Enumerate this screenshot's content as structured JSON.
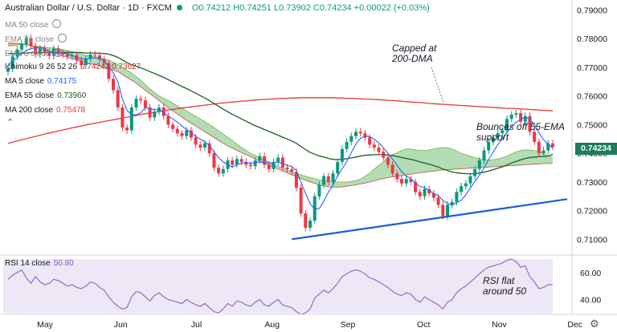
{
  "header": {
    "symbol": "Australian Dollar / U.S. Dollar · 1D · FXCM",
    "ohlc": "O0.74212 H0.74251 L0.73902 C0.74234 +0.00022 (+0.03%)"
  },
  "legend": [
    {
      "label": "MA 50 close",
      "value": ""
    },
    {
      "label": "EMA 21 close",
      "value": ""
    },
    {
      "label": "EMA 8 close",
      "value": ""
    },
    {
      "label": "Ichimoku 9 26 52 26",
      "value": "0.74242 0.73627"
    },
    {
      "label": "MA 5 close",
      "value": "0.74175"
    },
    {
      "label": "EMA 55 close",
      "value": "0.73960"
    },
    {
      "label": "MA 200 close",
      "value": "0.75478"
    }
  ],
  "rsi_label": "RSI 14 close",
  "rsi_value": "50.80",
  "annotations": {
    "capped": [
      "Capped at",
      "200-DMA"
    ],
    "bounces": [
      "Bounces off 55-EMA",
      "support"
    ],
    "rsi": [
      "RSI flat",
      "around 50"
    ]
  },
  "last_price_label": "0.74234",
  "colors": {
    "up": "#089981",
    "down": "#f23645",
    "ma5": "#2962ff",
    "ema55": "#1b5e20",
    "ma200": "#e53935",
    "cloud_bear": "#f28b82",
    "cloud_bull": "#a5d6a7",
    "trendline": "#1e5bd7",
    "rsi": "#7e57c2",
    "rsi_band": "#ede7f6"
  },
  "chart_data": {
    "type": "candlestick",
    "y_ticks": [
      "0.79000",
      "0.78000",
      "0.77000",
      "0.76000",
      "0.75000",
      "0.74000",
      "0.73000",
      "0.72000",
      "0.71000"
    ],
    "ylim": [
      0.7045,
      0.7935
    ],
    "x_ticks": [
      "May",
      "Jun",
      "Jul",
      "Aug",
      "Sep",
      "Oct",
      "Nov",
      "Dec"
    ],
    "rsi_ticks": [
      "60.00",
      "40.00"
    ],
    "rsi_ylim": [
      29,
      73
    ],
    "rsi_band": [
      30,
      70
    ],
    "close": [
      0.7695,
      0.7738,
      0.7762,
      0.7781,
      0.7802,
      0.7775,
      0.7745,
      0.7766,
      0.7752,
      0.774,
      0.7765,
      0.775,
      0.7745,
      0.7738,
      0.7742,
      0.7725,
      0.7708,
      0.773,
      0.7745,
      0.7742,
      0.7728,
      0.7715,
      0.766,
      0.762,
      0.756,
      0.749,
      0.748,
      0.756,
      0.759,
      0.7585,
      0.756,
      0.7525,
      0.7545,
      0.756,
      0.753,
      0.75,
      0.7485,
      0.747,
      0.746,
      0.748,
      0.7455,
      0.743,
      0.742,
      0.7435,
      0.74,
      0.735,
      0.733,
      0.7345,
      0.7375,
      0.736,
      0.738,
      0.737,
      0.736,
      0.7355,
      0.7375,
      0.739,
      0.736,
      0.7345,
      0.737,
      0.7385,
      0.735,
      0.7345,
      0.7335,
      0.728,
      0.719,
      0.714,
      0.7165,
      0.725,
      0.729,
      0.732,
      0.73,
      0.733,
      0.737,
      0.7415,
      0.744,
      0.746,
      0.7475,
      0.747,
      0.7455,
      0.743,
      0.742,
      0.7405,
      0.7385,
      0.736,
      0.733,
      0.731,
      0.7295,
      0.731,
      0.73,
      0.7265,
      0.725,
      0.7275,
      0.726,
      0.7245,
      0.722,
      0.718,
      0.722,
      0.723,
      0.7265,
      0.7285,
      0.7295,
      0.732,
      0.7345,
      0.7375,
      0.741,
      0.744,
      0.7455,
      0.747,
      0.748,
      0.752,
      0.7535,
      0.754,
      0.751,
      0.753,
      0.7475,
      0.744,
      0.74,
      0.741,
      0.7435,
      0.7423
    ],
    "ma5": [
      0.771,
      0.7722,
      0.7735,
      0.7748,
      0.776,
      0.7765,
      0.7768,
      0.777,
      0.7766,
      0.7755,
      0.7752,
      0.775,
      0.775,
      0.7748,
      0.7742,
      0.7734,
      0.773,
      0.7729,
      0.7732,
      0.7733,
      0.773,
      0.7722,
      0.7705,
      0.768,
      0.765,
      0.759,
      0.755,
      0.7534,
      0.7535,
      0.7541,
      0.756,
      0.7556,
      0.7552,
      0.7553,
      0.7542,
      0.7531,
      0.752,
      0.7509,
      0.7495,
      0.7483,
      0.7472,
      0.7459,
      0.7449,
      0.744,
      0.7428,
      0.7405,
      0.7385,
      0.737,
      0.736,
      0.7352,
      0.736,
      0.7366,
      0.7368,
      0.7365,
      0.7368,
      0.737,
      0.7368,
      0.7366,
      0.7366,
      0.737,
      0.7364,
      0.7358,
      0.7354,
      0.734,
      0.73,
      0.726,
      0.7224,
      0.7205,
      0.7207,
      0.7233,
      0.7265,
      0.729,
      0.7321,
      0.7346,
      0.7371,
      0.7403,
      0.7432,
      0.7452,
      0.746,
      0.7458,
      0.745,
      0.7436,
      0.7419,
      0.74,
      0.738,
      0.7358,
      0.7336,
      0.7321,
      0.7311,
      0.7296,
      0.7284,
      0.728,
      0.727,
      0.726,
      0.7252,
      0.7236,
      0.7225,
      0.7219,
      0.7228,
      0.7236,
      0.7255,
      0.7279,
      0.7302,
      0.7324,
      0.7349,
      0.7378,
      0.7405,
      0.743,
      0.7451,
      0.7473,
      0.7492,
      0.7509,
      0.7517,
      0.7527,
      0.7518,
      0.75,
      0.7471,
      0.7447,
      0.7432,
      0.7418
    ],
    "ema55": [
      0.7748,
      0.7748,
      0.7748,
      0.7749,
      0.775,
      0.7751,
      0.7751,
      0.7752,
      0.7752,
      0.7752,
      0.7752,
      0.7752,
      0.7752,
      0.7752,
      0.7752,
      0.7752,
      0.7751,
      0.775,
      0.775,
      0.775,
      0.7749,
      0.7748,
      0.7746,
      0.7741,
      0.7735,
      0.7726,
      0.7716,
      0.7709,
      0.7704,
      0.7698,
      0.7692,
      0.7685,
      0.7679,
      0.7672,
      0.7665,
      0.7657,
      0.7649,
      0.7641,
      0.7633,
      0.7626,
      0.7618,
      0.761,
      0.7601,
      0.7593,
      0.7584,
      0.7574,
      0.7564,
      0.7554,
      0.7545,
      0.7536,
      0.7528,
      0.752,
      0.7512,
      0.7504,
      0.7496,
      0.749,
      0.7483,
      0.7476,
      0.747,
      0.7463,
      0.7456,
      0.745,
      0.7443,
      0.7435,
      0.7424,
      0.7413,
      0.7403,
      0.7397,
      0.7391,
      0.7387,
      0.7382,
      0.7379,
      0.7378,
      0.7379,
      0.7381,
      0.7384,
      0.7387,
      0.739,
      0.7393,
      0.7394,
      0.7395,
      0.7395,
      0.7395,
      0.7394,
      0.7392,
      0.7389,
      0.7385,
      0.7382,
      0.7379,
      0.7375,
      0.737,
      0.7366,
      0.7362,
      0.7357,
      0.7352,
      0.7345,
      0.734,
      0.7335,
      0.7332,
      0.733,
      0.7329,
      0.7328,
      0.7329,
      0.7331,
      0.7334,
      0.7338,
      0.7343,
      0.7348,
      0.7353,
      0.7359,
      0.7366,
      0.7372,
      0.7377,
      0.7382,
      0.7385,
      0.7387,
      0.7388,
      0.7389,
      0.7391,
      0.7396
    ],
    "ma200": [
      0.7435,
      0.7439,
      0.7443,
      0.7447,
      0.7451,
      0.7455,
      0.7459,
      0.7463,
      0.7467,
      0.7471,
      0.7474,
      0.7478,
      0.7482,
      0.7485,
      0.7489,
      0.7492,
      0.7495,
      0.7499,
      0.7502,
      0.7505,
      0.7508,
      0.7511,
      0.7514,
      0.7517,
      0.752,
      0.7523,
      0.7526,
      0.7529,
      0.7532,
      0.7535,
      0.7538,
      0.7541,
      0.7543,
      0.7546,
      0.7548,
      0.7551,
      0.7553,
      0.7556,
      0.7558,
      0.756,
      0.7562,
      0.7564,
      0.7566,
      0.7568,
      0.757,
      0.7572,
      0.7574,
      0.7576,
      0.7577,
      0.7579,
      0.758,
      0.7582,
      0.7583,
      0.7585,
      0.7586,
      0.7587,
      0.7588,
      0.7589,
      0.759,
      0.7591,
      0.7592,
      0.7592,
      0.7593,
      0.7593,
      0.7594,
      0.7594,
      0.7594,
      0.7594,
      0.7594,
      0.7594,
      0.7594,
      0.7594,
      0.7593,
      0.7593,
      0.7592,
      0.7592,
      0.7591,
      0.759,
      0.7589,
      0.7589,
      0.7588,
      0.7587,
      0.7586,
      0.7585,
      0.7584,
      0.7583,
      0.7582,
      0.758,
      0.7579,
      0.7578,
      0.7577,
      0.7576,
      0.7574,
      0.7573,
      0.7572,
      0.7571,
      0.757,
      0.7569,
      0.7568,
      0.7567,
      0.7566,
      0.7565,
      0.7564,
      0.7563,
      0.7562,
      0.7561,
      0.756,
      0.7559,
      0.7558,
      0.7557,
      0.7557,
      0.7556,
      0.7555,
      0.7554,
      0.7553,
      0.7552,
      0.7551,
      0.755,
      0.7549,
      0.7548
    ],
    "cloud_a": [
      0.7775,
      0.7775,
      0.7778,
      0.778,
      0.7778,
      0.7776,
      0.7774,
      0.7772,
      0.777,
      0.7768,
      0.7768,
      0.7765,
      0.7762,
      0.7758,
      0.7755,
      0.775,
      0.7745,
      0.7742,
      0.774,
      0.7738,
      0.7735,
      0.773,
      0.7725,
      0.7718,
      0.771,
      0.77,
      0.769,
      0.768,
      0.7668,
      0.7655,
      0.764,
      0.7625,
      0.7612,
      0.76,
      0.7592,
      0.7585,
      0.7575,
      0.7565,
      0.7558,
      0.7548,
      0.7538,
      0.753,
      0.752,
      0.751,
      0.75,
      0.749,
      0.7478,
      0.7468,
      0.7455,
      0.7445,
      0.7432,
      0.742,
      0.741,
      0.74,
      0.7393,
      0.7385,
      0.7378,
      0.737,
      0.7362,
      0.7355,
      0.7348,
      0.7342,
      0.7335,
      0.733,
      0.7325,
      0.732,
      0.7316,
      0.7312,
      0.7308,
      0.7305,
      0.7302,
      0.73,
      0.73,
      0.73,
      0.73,
      0.7302,
      0.7305,
      0.731,
      0.732,
      0.733,
      0.7345,
      0.7358,
      0.737,
      0.7385,
      0.7395,
      0.7402,
      0.741,
      0.7415,
      0.7415,
      0.7412,
      0.741,
      0.741,
      0.7412,
      0.7415,
      0.7418,
      0.742,
      0.742,
      0.7415,
      0.7408,
      0.74,
      0.7395,
      0.739,
      0.7385,
      0.738,
      0.7378,
      0.7376,
      0.7378,
      0.738,
      0.7385,
      0.739,
      0.7398,
      0.7405,
      0.741,
      0.7412,
      0.7412,
      0.741,
      0.7408,
      0.74,
      0.7392,
      0.7385
    ],
    "cloud_b": [
      0.7785,
      0.7785,
      0.7784,
      0.7782,
      0.778,
      0.7775,
      0.777,
      0.7765,
      0.776,
      0.7755,
      0.775,
      0.7745,
      0.774,
      0.7735,
      0.773,
      0.7725,
      0.772,
      0.7715,
      0.7712,
      0.771,
      0.7705,
      0.77,
      0.7695,
      0.769,
      0.7685,
      0.7675,
      0.7665,
      0.7655,
      0.7645,
      0.7632,
      0.762,
      0.7608,
      0.7596,
      0.7584,
      0.7572,
      0.756,
      0.7548,
      0.7537,
      0.7526,
      0.7515,
      0.7505,
      0.7495,
      0.7485,
      0.7475,
      0.7465,
      0.7455,
      0.7445,
      0.7435,
      0.7425,
      0.7418,
      0.741,
      0.7402,
      0.7395,
      0.7388,
      0.738,
      0.7372,
      0.7365,
      0.7358,
      0.7352,
      0.7345,
      0.7338,
      0.7332,
      0.7325,
      0.7318,
      0.7312,
      0.7306,
      0.73,
      0.7295,
      0.729,
      0.7286,
      0.7283,
      0.7282,
      0.7282,
      0.7283,
      0.7285,
      0.7287,
      0.729,
      0.7293,
      0.7296,
      0.73,
      0.7304,
      0.7308,
      0.7312,
      0.7315,
      0.7318,
      0.732,
      0.7322,
      0.7325,
      0.7327,
      0.733,
      0.7332,
      0.7334,
      0.7336,
      0.7338,
      0.734,
      0.7342,
      0.7343,
      0.7344,
      0.7345,
      0.7346,
      0.7347,
      0.7348,
      0.7349,
      0.735,
      0.7351,
      0.7352,
      0.7353,
      0.7354,
      0.7355,
      0.7356,
      0.7357,
      0.7358,
      0.7359,
      0.736,
      0.7361,
      0.7362,
      0.7363,
      0.7364,
      0.7364,
      0.7365
    ],
    "rsi": [
      55,
      58,
      60,
      62,
      56,
      52,
      57,
      53,
      51,
      52,
      55,
      54,
      52,
      50,
      51,
      49,
      48,
      50,
      53,
      52,
      49,
      47,
      42,
      38,
      35,
      33,
      34,
      42,
      46,
      45,
      42,
      39,
      43,
      45,
      42,
      40,
      39,
      38,
      37,
      40,
      38,
      36,
      35,
      37,
      34,
      31,
      30,
      33,
      37,
      35,
      39,
      38,
      36,
      35,
      38,
      40,
      36,
      35,
      38,
      40,
      36,
      35,
      34,
      31,
      29,
      30,
      33,
      41,
      44,
      47,
      45,
      48,
      52,
      57,
      59,
      61,
      62,
      61,
      59,
      56,
      55,
      53,
      51,
      49,
      46,
      44,
      43,
      45,
      44,
      40,
      38,
      42,
      40,
      38,
      36,
      33,
      38,
      40,
      45,
      48,
      50,
      53,
      56,
      59,
      62,
      64,
      65,
      66,
      67,
      69,
      70,
      68,
      64,
      65,
      57,
      53,
      48,
      49,
      51,
      51
    ]
  }
}
